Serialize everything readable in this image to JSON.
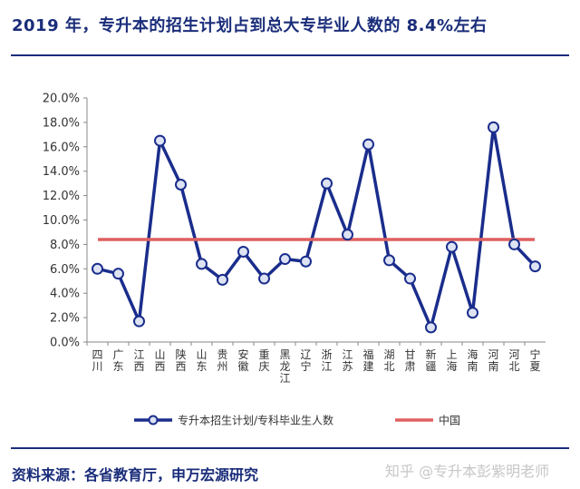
{
  "header": {
    "title": "2019 年，专升本的招生计划占到总大专毕业人数的 8.4%左右"
  },
  "footer": {
    "source": "资料来源：各省教育厅，申万宏源研究",
    "watermark": "知乎 @专升本彭紫明老师"
  },
  "chart_data": {
    "type": "line",
    "title": "2019 年，专升本的招生计划占到总大专毕业人数的 8.4%左右",
    "xlabel": "",
    "ylabel": "",
    "ylim": [
      0,
      20
    ],
    "yticks": [
      "0.0%",
      "2.0%",
      "4.0%",
      "6.0%",
      "8.0%",
      "10.0%",
      "12.0%",
      "14.0%",
      "16.0%",
      "18.0%",
      "20.0%"
    ],
    "categories": [
      "四川",
      "广东",
      "江西",
      "山西",
      "陕西",
      "山东",
      "贵州",
      "安徽",
      "重庆",
      "黑龙江",
      "辽宁",
      "浙江",
      "江苏",
      "福建",
      "湖北",
      "甘肃",
      "新疆",
      "上海",
      "海南",
      "河南",
      "河北",
      "宁夏"
    ],
    "series": [
      {
        "name": "专升本招生计划/专科毕业生人数",
        "color": "#1a2d8c",
        "values": [
          6.0,
          5.6,
          1.7,
          16.5,
          12.9,
          6.4,
          5.1,
          7.4,
          5.2,
          6.8,
          6.6,
          13.0,
          8.8,
          16.2,
          6.7,
          5.2,
          1.2,
          7.8,
          2.4,
          17.6,
          8.0,
          6.2
        ]
      },
      {
        "name": "中国",
        "color": "#e06060",
        "values": [
          8.4,
          8.4,
          8.4,
          8.4,
          8.4,
          8.4,
          8.4,
          8.4,
          8.4,
          8.4,
          8.4,
          8.4,
          8.4,
          8.4,
          8.4,
          8.4,
          8.4,
          8.4,
          8.4,
          8.4,
          8.4,
          8.4
        ]
      }
    ],
    "grid": false,
    "legend_position": "bottom"
  }
}
